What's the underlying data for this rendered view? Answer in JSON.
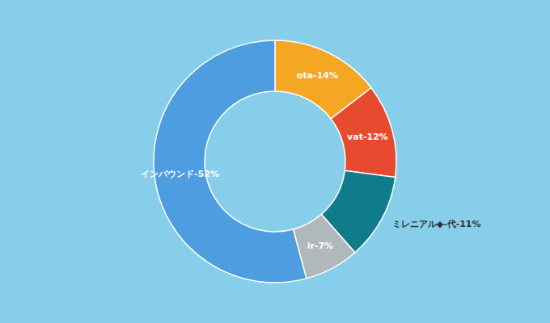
{
  "chart_data": {
    "type": "pie",
    "values": [
      14,
      12,
      11,
      7,
      52
    ],
    "value_labels": [
      "ota-14%",
      "vat-12%",
      "ミレニアル◆-代-11%",
      "ir-7%",
      "インバウンド-52%"
    ],
    "colors": [
      "#f5a623",
      "#e84a2f",
      "#0e7c8a",
      "#b0b8bc",
      "#4d9de0"
    ],
    "data_labels": true
  }
}
